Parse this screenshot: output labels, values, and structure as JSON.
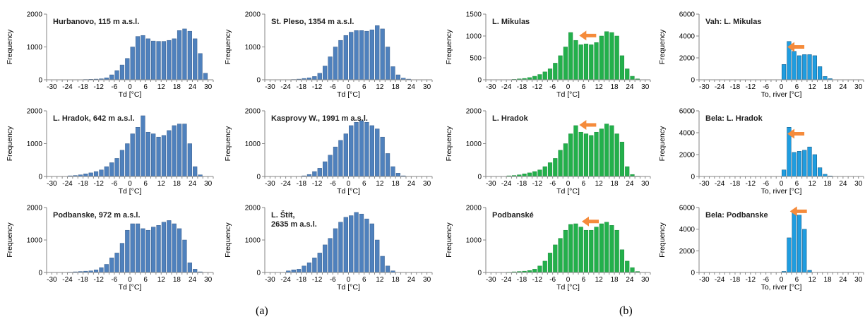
{
  "captions": {
    "a": "(a)",
    "b": "(b)"
  },
  "colors": {
    "air_bar": "#4f81bd",
    "air_bar_edge": "#385d8a",
    "green_bar": "#23b04b",
    "green_bar_edge": "#1a8a3a",
    "blue_bar": "#1f9de0",
    "blue_bar_edge": "#0b4f7a",
    "arrow": "#f58b3b"
  },
  "chart_data": [
    {
      "type": "bar",
      "id": "hurbanovo",
      "title": "Hurbanovo,  115 m a.s.l.",
      "xlabel": "Td [°C]",
      "ylabel": "Frequency",
      "xticks": [
        -30,
        -24,
        -18,
        -12,
        -6,
        0,
        6,
        12,
        18,
        24,
        30
      ],
      "yticks": [
        0,
        1000,
        2000
      ],
      "ylim": [
        0,
        2000
      ],
      "x": [
        -30,
        -28,
        -26,
        -24,
        -22,
        -20,
        -18,
        -16,
        -14,
        -12,
        -10,
        -8,
        -6,
        -4,
        -2,
        0,
        2,
        4,
        6,
        8,
        10,
        12,
        14,
        16,
        18,
        20,
        22,
        24,
        26,
        28
      ],
      "values": [
        0,
        0,
        0,
        0,
        0,
        5,
        10,
        15,
        20,
        30,
        60,
        150,
        280,
        450,
        650,
        1000,
        1320,
        1350,
        1250,
        1180,
        1170,
        1170,
        1200,
        1250,
        1500,
        1550,
        1480,
        1250,
        800,
        200
      ]
    },
    {
      "type": "bar",
      "id": "stpleso",
      "title": "St. Pleso, 1354 m a.s.l.",
      "xlabel": "Td [°C]",
      "ylabel": "Frequency",
      "xticks": [
        -30,
        -24,
        -18,
        -12,
        -6,
        0,
        6,
        12,
        18,
        24,
        30
      ],
      "yticks": [
        0,
        1000,
        2000
      ],
      "ylim": [
        0,
        2000
      ],
      "x": [
        -30,
        -28,
        -26,
        -24,
        -22,
        -20,
        -18,
        -16,
        -14,
        -12,
        -10,
        -8,
        -6,
        -4,
        -2,
        0,
        2,
        4,
        6,
        8,
        10,
        12,
        14,
        16,
        18,
        20,
        22,
        24,
        26,
        28
      ],
      "values": [
        0,
        0,
        0,
        0,
        10,
        20,
        40,
        60,
        100,
        200,
        420,
        700,
        1000,
        1200,
        1350,
        1450,
        1500,
        1500,
        1480,
        1520,
        1650,
        1550,
        1000,
        400,
        150,
        50,
        20,
        5,
        0,
        0
      ]
    },
    {
      "type": "bar",
      "id": "lhradok",
      "title": "L. Hradok, 642 m a.s.l.",
      "xlabel": "Td [°C]",
      "ylabel": "Frequency",
      "xticks": [
        -30,
        -24,
        -18,
        -12,
        -6,
        0,
        6,
        12,
        18,
        24,
        30
      ],
      "yticks": [
        0,
        1000,
        2000
      ],
      "ylim": [
        0,
        2000
      ],
      "x": [
        -30,
        -28,
        -26,
        -24,
        -22,
        -20,
        -18,
        -16,
        -14,
        -12,
        -10,
        -8,
        -6,
        -4,
        -2,
        0,
        2,
        4,
        6,
        8,
        10,
        12,
        14,
        16,
        18,
        20,
        22,
        24,
        26,
        28
      ],
      "values": [
        0,
        0,
        0,
        20,
        30,
        50,
        80,
        110,
        150,
        200,
        300,
        420,
        550,
        800,
        1000,
        1300,
        1500,
        1850,
        1350,
        1300,
        1200,
        1250,
        1400,
        1550,
        1600,
        1600,
        1000,
        300,
        50,
        0
      ]
    },
    {
      "type": "bar",
      "id": "kasprovy",
      "title": "Kasprovy W., 1991 m a.s.l.",
      "xlabel": "Td [°C]",
      "ylabel": "Frequency",
      "xticks": [
        -30,
        -24,
        -18,
        -12,
        -6,
        0,
        6,
        12,
        18,
        24,
        30
      ],
      "yticks": [
        0,
        1000,
        2000
      ],
      "ylim": [
        0,
        2000
      ],
      "x": [
        -30,
        -28,
        -26,
        -24,
        -22,
        -20,
        -18,
        -16,
        -14,
        -12,
        -10,
        -8,
        -6,
        -4,
        -2,
        0,
        2,
        4,
        6,
        8,
        10,
        12,
        14,
        16,
        18,
        20,
        22,
        24,
        26,
        28
      ],
      "values": [
        0,
        0,
        0,
        0,
        0,
        0,
        20,
        60,
        150,
        250,
        450,
        650,
        900,
        1100,
        1300,
        1550,
        1650,
        1700,
        1650,
        1550,
        1450,
        1200,
        700,
        300,
        100,
        20,
        0,
        0,
        0,
        0
      ]
    },
    {
      "type": "bar",
      "id": "podbanske",
      "title": "Podbanske, 972 m a.s.l.",
      "xlabel": "Td [°C]",
      "ylabel": "Frequency",
      "xticks": [
        -30,
        -24,
        -18,
        -12,
        -6,
        0,
        6,
        12,
        18,
        24,
        30
      ],
      "yticks": [
        0,
        1000,
        2000
      ],
      "ylim": [
        0,
        2000
      ],
      "x": [
        -30,
        -28,
        -26,
        -24,
        -22,
        -20,
        -18,
        -16,
        -14,
        -12,
        -10,
        -8,
        -6,
        -4,
        -2,
        0,
        2,
        4,
        6,
        8,
        10,
        12,
        14,
        16,
        18,
        20,
        22,
        24,
        26,
        28
      ],
      "values": [
        0,
        0,
        0,
        10,
        20,
        30,
        40,
        50,
        80,
        150,
        250,
        450,
        600,
        900,
        1300,
        1500,
        1500,
        1350,
        1300,
        1400,
        1450,
        1550,
        1600,
        1500,
        1350,
        1000,
        300,
        100,
        20,
        0
      ]
    },
    {
      "type": "bar",
      "id": "lstit",
      "title": "L. Štít,\n2635 m a.s.l.",
      "xlabel": "Td [°C]",
      "ylabel": "Frequency",
      "xticks": [
        -30,
        -24,
        -18,
        -12,
        -6,
        0,
        6,
        12,
        18,
        24,
        30
      ],
      "yticks": [
        0,
        1000,
        2000
      ],
      "ylim": [
        0,
        2000
      ],
      "x": [
        -30,
        -28,
        -26,
        -24,
        -22,
        -20,
        -18,
        -16,
        -14,
        -12,
        -10,
        -8,
        -6,
        -4,
        -2,
        0,
        2,
        4,
        6,
        8,
        10,
        12,
        14,
        16,
        18,
        20,
        22,
        24,
        26,
        28
      ],
      "values": [
        0,
        0,
        0,
        50,
        80,
        100,
        200,
        300,
        450,
        600,
        850,
        1050,
        1350,
        1550,
        1700,
        1750,
        1850,
        1800,
        1650,
        1500,
        1000,
        500,
        200,
        50,
        0,
        0,
        0,
        0,
        0,
        0
      ]
    },
    {
      "type": "bar",
      "id": "g_lmikulas",
      "title": "L. Mikulas",
      "xlabel": "Td [°C]",
      "ylabel": "Frequency",
      "xticks": [
        -30,
        -24,
        -18,
        -12,
        -6,
        0,
        6,
        12,
        18,
        24,
        30
      ],
      "yticks": [
        0,
        500,
        1000,
        1500
      ],
      "ylim": [
        0,
        1500
      ],
      "x": [
        -30,
        -28,
        -26,
        -24,
        -22,
        -20,
        -18,
        -16,
        -14,
        -12,
        -10,
        -8,
        -6,
        -4,
        -2,
        0,
        2,
        4,
        6,
        8,
        10,
        12,
        14,
        16,
        18,
        20,
        22,
        24,
        26,
        28
      ],
      "values": [
        0,
        0,
        0,
        0,
        10,
        20,
        30,
        50,
        80,
        120,
        180,
        250,
        380,
        550,
        750,
        1080,
        900,
        800,
        820,
        800,
        850,
        1000,
        1100,
        1080,
        1000,
        550,
        250,
        80,
        20,
        0
      ]
    },
    {
      "type": "bar",
      "id": "g_lhradok",
      "title": "L. Hradok",
      "xlabel": "Td [°C]",
      "ylabel": "Frequency",
      "xticks": [
        -30,
        -24,
        -18,
        -12,
        -6,
        0,
        6,
        12,
        18,
        24,
        30
      ],
      "yticks": [
        0,
        1000,
        2000
      ],
      "ylim": [
        0,
        2000
      ],
      "x": [
        -30,
        -28,
        -26,
        -24,
        -22,
        -20,
        -18,
        -16,
        -14,
        -12,
        -10,
        -8,
        -6,
        -4,
        -2,
        0,
        2,
        4,
        6,
        8,
        10,
        12,
        14,
        16,
        18,
        20,
        22,
        24,
        26,
        28
      ],
      "values": [
        0,
        0,
        0,
        20,
        30,
        50,
        80,
        110,
        150,
        200,
        300,
        420,
        550,
        800,
        1000,
        1300,
        1550,
        1350,
        1300,
        1250,
        1350,
        1450,
        1600,
        1550,
        1300,
        1050,
        300,
        60,
        10,
        0
      ]
    },
    {
      "type": "bar",
      "id": "g_podbanske",
      "title": "Podbanské",
      "xlabel": "Td [°C]",
      "ylabel": "Frequency",
      "xticks": [
        -30,
        -24,
        -18,
        -12,
        -6,
        0,
        6,
        12,
        18,
        24,
        30
      ],
      "yticks": [
        0,
        1000,
        2000
      ],
      "ylim": [
        0,
        2000
      ],
      "x": [
        -30,
        -28,
        -26,
        -24,
        -22,
        -20,
        -18,
        -16,
        -14,
        -12,
        -10,
        -8,
        -6,
        -4,
        -2,
        0,
        2,
        4,
        6,
        8,
        10,
        12,
        14,
        16,
        18,
        20,
        22,
        24,
        26,
        28
      ],
      "values": [
        0,
        0,
        0,
        10,
        20,
        30,
        40,
        60,
        100,
        200,
        350,
        600,
        850,
        1050,
        1300,
        1480,
        1500,
        1400,
        1300,
        1300,
        1400,
        1500,
        1550,
        1450,
        1300,
        700,
        350,
        150,
        30,
        0
      ]
    },
    {
      "type": "bar",
      "id": "b_vah",
      "title": "Vah: L. Mikulas",
      "xlabel": "To, river [°C]",
      "ylabel": "Frequency",
      "xticks": [
        -30,
        -24,
        -18,
        -12,
        -6,
        0,
        6,
        12,
        18,
        24,
        30
      ],
      "yticks": [
        0,
        2000,
        4000,
        6000
      ],
      "ylim": [
        0,
        6000
      ],
      "x": [
        -30,
        -28,
        -26,
        -24,
        -22,
        -20,
        -18,
        -16,
        -14,
        -12,
        -10,
        -8,
        -6,
        -4,
        -2,
        0,
        2,
        4,
        6,
        8,
        10,
        12,
        14,
        16,
        18,
        20,
        22,
        24,
        26,
        28
      ],
      "values": [
        0,
        0,
        0,
        0,
        0,
        0,
        0,
        0,
        0,
        0,
        0,
        0,
        0,
        0,
        0,
        1400,
        3500,
        2600,
        2200,
        2300,
        2300,
        2200,
        1200,
        300,
        100,
        0,
        0,
        0,
        0,
        0
      ]
    },
    {
      "type": "bar",
      "id": "b_bela_lhradok",
      "title": "Bela: L. Hradok",
      "xlabel": "To, river [°C]",
      "ylabel": "Frequency",
      "xticks": [
        -30,
        -24,
        -18,
        -12,
        -6,
        0,
        6,
        12,
        18,
        24,
        30
      ],
      "yticks": [
        0,
        2000,
        4000,
        6000
      ],
      "ylim": [
        0,
        6000
      ],
      "x": [
        -30,
        -28,
        -26,
        -24,
        -22,
        -20,
        -18,
        -16,
        -14,
        -12,
        -10,
        -8,
        -6,
        -4,
        -2,
        0,
        2,
        4,
        6,
        8,
        10,
        12,
        14,
        16,
        18,
        20,
        22,
        24,
        26,
        28
      ],
      "values": [
        0,
        0,
        0,
        0,
        0,
        0,
        0,
        0,
        0,
        0,
        0,
        0,
        0,
        0,
        0,
        600,
        4500,
        2200,
        2300,
        2400,
        2700,
        2000,
        800,
        200,
        50,
        0,
        0,
        0,
        0,
        0
      ]
    },
    {
      "type": "bar",
      "id": "b_bela_podbanske",
      "title": "Bela: Podbanske",
      "xlabel": "To, river [°C]",
      "ylabel": "Frequency",
      "xticks": [
        -30,
        -24,
        -18,
        -12,
        -6,
        0,
        6,
        12,
        18,
        24,
        30
      ],
      "yticks": [
        0,
        2000,
        4000,
        6000
      ],
      "ylim": [
        0,
        6000
      ],
      "x": [
        -30,
        -28,
        -26,
        -24,
        -22,
        -20,
        -18,
        -16,
        -14,
        -12,
        -10,
        -8,
        -6,
        -4,
        -2,
        0,
        2,
        4,
        6,
        8,
        10,
        12,
        14,
        16,
        18,
        20,
        22,
        24,
        26,
        28
      ],
      "values": [
        0,
        0,
        0,
        0,
        0,
        0,
        0,
        0,
        0,
        0,
        0,
        0,
        0,
        0,
        0,
        100,
        3200,
        5700,
        5300,
        4000,
        200,
        0,
        0,
        0,
        0,
        0,
        0,
        0,
        0,
        0
      ]
    }
  ]
}
